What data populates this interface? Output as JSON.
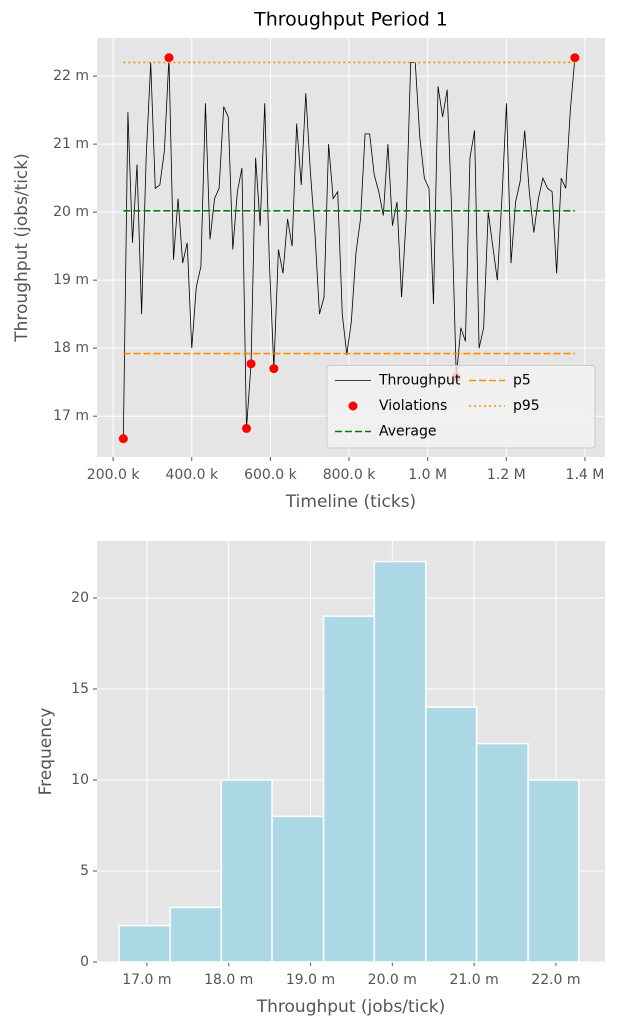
{
  "chart_data": [
    {
      "type": "line",
      "title": "Throughput Period 1",
      "x_label": "Timeline (ticks)",
      "y_label": "Throughput (jobs/tick)",
      "x": [
        226000,
        237600,
        249200,
        260800,
        272400,
        284000,
        295600,
        307200,
        318800,
        330400,
        342000,
        353600,
        365200,
        376800,
        388400,
        400000,
        411600,
        423200,
        434800,
        446400,
        458000,
        469600,
        481200,
        492800,
        504400,
        516000,
        527600,
        539200,
        550800,
        562400,
        574000,
        585600,
        597200,
        608800,
        620400,
        632000,
        643600,
        655200,
        666800,
        678400,
        690000,
        701600,
        713200,
        724800,
        736400,
        748000,
        759600,
        771200,
        782800,
        794400,
        806000,
        817600,
        829200,
        840800,
        852400,
        864000,
        875600,
        887200,
        898800,
        910400,
        922000,
        933600,
        945200,
        956800,
        968400,
        980000,
        991600,
        1003200,
        1014800,
        1026400,
        1038000,
        1049600,
        1061200,
        1072800,
        1084400,
        1096000,
        1107600,
        1119200,
        1130800,
        1142400,
        1154000,
        1165600,
        1177200,
        1188800,
        1200400,
        1212000,
        1223600,
        1235200,
        1246800,
        1258400,
        1270000,
        1281600,
        1293200,
        1304800,
        1316400,
        1328000,
        1339600,
        1351200,
        1362800,
        1374400
      ],
      "series": [
        {
          "name": "Throughput",
          "color": "#000000",
          "values": [
            16.67,
            21.47,
            19.55,
            20.7,
            18.5,
            20.8,
            22.2,
            20.35,
            20.4,
            20.9,
            22.27,
            19.3,
            20.2,
            19.25,
            19.55,
            18.0,
            18.9,
            19.2,
            21.6,
            19.6,
            20.2,
            20.35,
            21.55,
            21.4,
            19.45,
            20.3,
            20.65,
            16.82,
            17.77,
            20.8,
            19.8,
            21.6,
            19.3,
            17.7,
            19.45,
            19.1,
            19.9,
            19.5,
            21.3,
            20.4,
            21.75,
            20.6,
            19.7,
            18.5,
            18.75,
            21.0,
            20.2,
            20.3,
            18.5,
            17.9,
            18.4,
            19.4,
            19.9,
            21.15,
            21.15,
            20.55,
            20.3,
            19.95,
            21.0,
            19.8,
            20.15,
            18.75,
            19.9,
            22.2,
            22.2,
            21.1,
            20.5,
            20.35,
            18.65,
            21.85,
            21.4,
            21.8,
            20.0,
            17.57,
            18.3,
            18.1,
            20.8,
            21.2,
            18.0,
            18.3,
            20.0,
            19.5,
            19.0,
            20.2,
            21.6,
            19.25,
            20.15,
            20.45,
            21.2,
            20.3,
            19.7,
            20.2,
            20.5,
            20.35,
            20.3,
            19.1,
            20.5,
            20.35,
            21.5,
            22.27
          ]
        },
        {
          "name": "Violations",
          "type": "scatter",
          "color": "#ff0000",
          "x": [
            226000,
            342000,
            539200,
            550800,
            608800,
            1072800,
            1374400
          ],
          "values": [
            16.67,
            22.27,
            16.82,
            17.77,
            17.7,
            17.57,
            22.27
          ]
        }
      ],
      "hlines": [
        {
          "name": "Average",
          "value": 20.02,
          "color": "#008000",
          "style": "dashed"
        },
        {
          "name": "p5",
          "value": 17.92,
          "color": "#ff8c00",
          "style": "dashed"
        },
        {
          "name": "p95",
          "value": 22.2,
          "color": "#ff8c00",
          "style": "dotted"
        }
      ],
      "xlim": [
        159000,
        1451000
      ],
      "ylim": [
        16.4,
        22.56
      ],
      "xticks": [
        {
          "value": 200000,
          "label": "200.0 k"
        },
        {
          "value": 400000,
          "label": "400.0 k"
        },
        {
          "value": 600000,
          "label": "600.0 k"
        },
        {
          "value": 800000,
          "label": "800.0 k"
        },
        {
          "value": 1000000,
          "label": "1.0 M"
        },
        {
          "value": 1200000,
          "label": "1.2 M"
        },
        {
          "value": 1400000,
          "label": "1.4 M"
        }
      ],
      "yticks": [
        {
          "value": 17,
          "label": "17 m"
        },
        {
          "value": 18,
          "label": "18 m"
        },
        {
          "value": 19,
          "label": "19 m"
        },
        {
          "value": 20,
          "label": "20 m"
        },
        {
          "value": 21,
          "label": "21 m"
        },
        {
          "value": 22,
          "label": "22 m"
        }
      ],
      "grid": true,
      "legend": "lower right",
      "legend_columns": 2
    },
    {
      "type": "histogram",
      "x_label": "Throughput (jobs/tick)",
      "y_label": "Frequency",
      "bins": [
        16.66,
        17.285,
        17.91,
        18.53,
        19.16,
        19.78,
        20.41,
        21.03,
        21.66,
        22.28
      ],
      "values": [
        2,
        3,
        10,
        8,
        19,
        22,
        14,
        12,
        10
      ],
      "color": "#add8e6",
      "xlim": [
        16.39,
        22.6
      ],
      "ylim": [
        0,
        23.13
      ],
      "xticks": [
        {
          "value": 17,
          "label": "17.0 m"
        },
        {
          "value": 18,
          "label": "18.0 m"
        },
        {
          "value": 19,
          "label": "19.0 m"
        },
        {
          "value": 20,
          "label": "20.0 m"
        },
        {
          "value": 21,
          "label": "21.0 m"
        },
        {
          "value": 22,
          "label": "22.0 m"
        }
      ],
      "yticks": [
        0,
        5,
        10,
        15,
        20
      ],
      "grid": true
    }
  ]
}
